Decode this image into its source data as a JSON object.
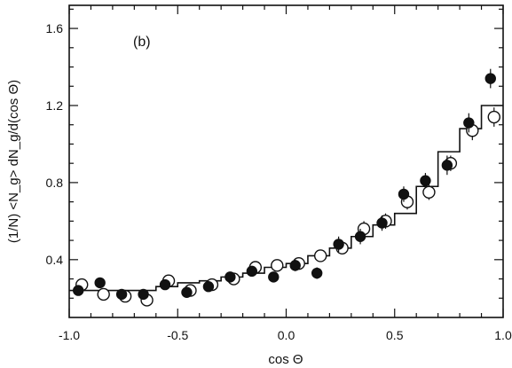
{
  "chart_data": {
    "type": "scatter",
    "panel_label": "(b)",
    "xlabel": "cos  Θ",
    "ylabel": "(1/N) <N_g> dN_g/d(cos Θ)",
    "xlim": [
      -1.0,
      1.0
    ],
    "ylim": [
      0.1,
      1.72
    ],
    "x_ticks": [
      -1.0,
      -0.5,
      0.0,
      0.5,
      1.0
    ],
    "x_tick_labels": [
      "-1.0",
      "-0.5",
      "0.0",
      "0.5",
      "1.0"
    ],
    "y_ticks": [
      0.4,
      0.8,
      1.2,
      1.6
    ],
    "y_tick_labels": [
      "0.4",
      "0.8",
      "1.2",
      "1.6"
    ],
    "grid": false,
    "series": [
      {
        "marker": "filled-circle",
        "x": [
          -0.95,
          -0.85,
          -0.75,
          -0.65,
          -0.55,
          -0.45,
          -0.35,
          -0.25,
          -0.15,
          -0.05,
          0.05,
          0.15,
          0.25,
          0.35,
          0.45,
          0.55,
          0.65,
          0.75,
          0.85,
          0.95
        ],
        "y": [
          0.24,
          0.28,
          0.22,
          0.22,
          0.27,
          0.23,
          0.26,
          0.31,
          0.34,
          0.31,
          0.37,
          0.33,
          0.48,
          0.52,
          0.59,
          0.74,
          0.81,
          0.89,
          1.11,
          1.34
        ],
        "err": [
          0.02,
          0.02,
          0.02,
          0.02,
          0.02,
          0.02,
          0.02,
          0.02,
          0.02,
          0.02,
          0.03,
          0.03,
          0.04,
          0.04,
          0.04,
          0.04,
          0.04,
          0.05,
          0.05,
          0.05
        ]
      },
      {
        "marker": "open-circle",
        "x": [
          -0.95,
          -0.85,
          -0.75,
          -0.65,
          -0.55,
          -0.45,
          -0.35,
          -0.25,
          -0.15,
          -0.05,
          0.05,
          0.15,
          0.25,
          0.35,
          0.45,
          0.55,
          0.65,
          0.75,
          0.85,
          0.95
        ],
        "y": [
          0.27,
          0.22,
          0.21,
          0.19,
          0.29,
          0.24,
          0.27,
          0.3,
          0.36,
          0.37,
          0.38,
          0.42,
          0.46,
          0.56,
          0.6,
          0.7,
          0.75,
          0.9,
          1.07,
          1.14
        ],
        "err": [
          0.02,
          0.02,
          0.02,
          0.02,
          0.02,
          0.02,
          0.02,
          0.02,
          0.02,
          0.02,
          0.03,
          0.03,
          0.03,
          0.04,
          0.04,
          0.04,
          0.04,
          0.04,
          0.05,
          0.05
        ]
      }
    ],
    "histogram": {
      "style": "step",
      "edges": [
        -1.0,
        -0.9,
        -0.8,
        -0.7,
        -0.6,
        -0.5,
        -0.4,
        -0.3,
        -0.2,
        -0.1,
        0.0,
        0.1,
        0.2,
        0.3,
        0.4,
        0.5,
        0.6,
        0.7,
        0.8,
        0.9,
        1.0
      ],
      "values": [
        0.24,
        0.24,
        0.24,
        0.24,
        0.26,
        0.28,
        0.29,
        0.31,
        0.33,
        0.36,
        0.38,
        0.42,
        0.46,
        0.52,
        0.58,
        0.64,
        0.78,
        0.96,
        1.08,
        1.2
      ]
    }
  }
}
